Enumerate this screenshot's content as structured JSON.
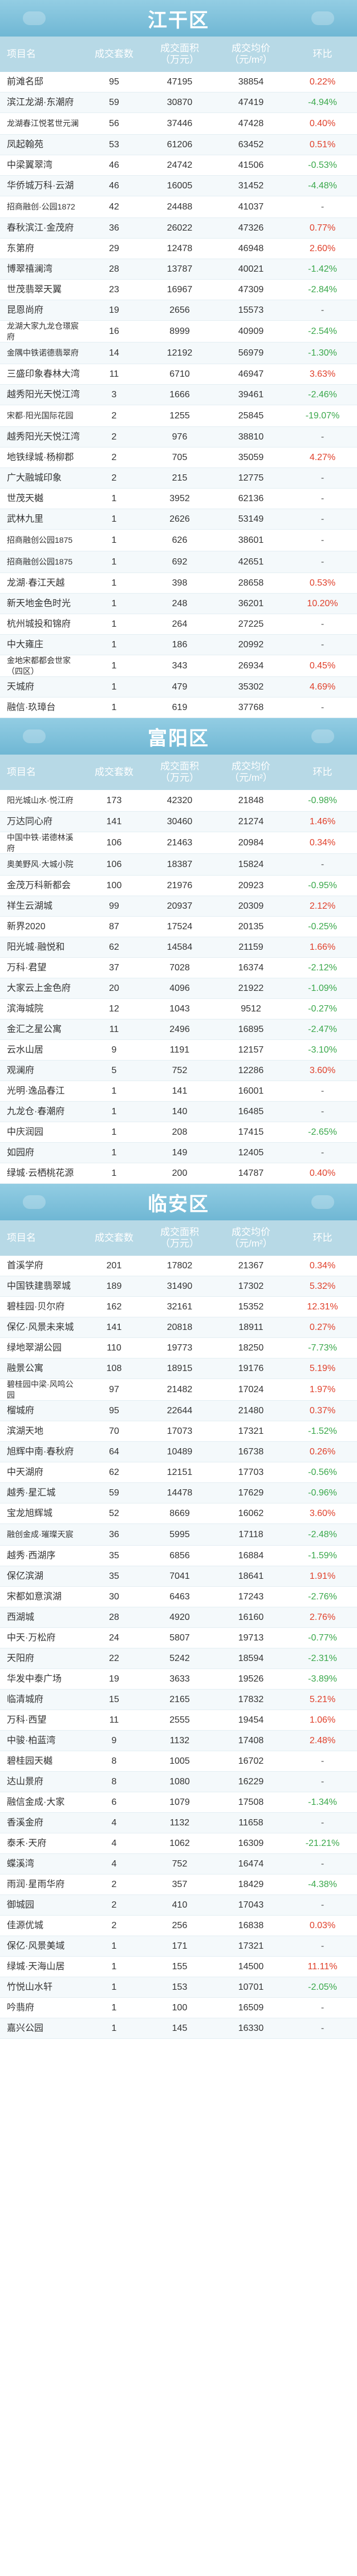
{
  "headers": {
    "name": "项目名",
    "count": "成交套数",
    "area": "成交面积\n（万元）",
    "price": "成交均价\n（元/m²）",
    "ratio": "环比"
  },
  "sections": [
    {
      "district": "江干区",
      "rows": [
        {
          "name": "前滩名邸",
          "count": "95",
          "area": "47195",
          "price": "38854",
          "ratio": "0.22%",
          "trend": "up"
        },
        {
          "name": "滨江龙湖·东潮府",
          "count": "59",
          "area": "30870",
          "price": "47419",
          "ratio": "-4.94%",
          "trend": "down"
        },
        {
          "name": "龙湖春江悦茗世元澜",
          "count": "56",
          "area": "37446",
          "price": "47428",
          "ratio": "0.40%",
          "trend": "up"
        },
        {
          "name": "凤起翰苑",
          "count": "53",
          "area": "61206",
          "price": "63452",
          "ratio": "0.51%",
          "trend": "up"
        },
        {
          "name": "中梁翼翠湾",
          "count": "46",
          "area": "24742",
          "price": "41506",
          "ratio": "-0.53%",
          "trend": "down"
        },
        {
          "name": "华侨城万科·云湖",
          "count": "46",
          "area": "16005",
          "price": "31452",
          "ratio": "-4.48%",
          "trend": "down"
        },
        {
          "name": "招商融创·公园1872",
          "count": "42",
          "area": "24488",
          "price": "41037",
          "ratio": "-",
          "trend": "flat"
        },
        {
          "name": "春秋滨江·金茂府",
          "count": "36",
          "area": "26022",
          "price": "47326",
          "ratio": "0.77%",
          "trend": "up"
        },
        {
          "name": "东第府",
          "count": "29",
          "area": "12478",
          "price": "46948",
          "ratio": "2.60%",
          "trend": "up"
        },
        {
          "name": "博翠禧澜湾",
          "count": "28",
          "area": "13787",
          "price": "40021",
          "ratio": "-1.42%",
          "trend": "down"
        },
        {
          "name": "世茂翡翠天翼",
          "count": "23",
          "area": "16967",
          "price": "47309",
          "ratio": "-2.84%",
          "trend": "down"
        },
        {
          "name": "昆恩尚府",
          "count": "19",
          "area": "2656",
          "price": "15573",
          "ratio": "-",
          "trend": "flat"
        },
        {
          "name": "龙湖大家九龙仓璟宸府",
          "count": "16",
          "area": "8999",
          "price": "40909",
          "ratio": "-2.54%",
          "trend": "down"
        },
        {
          "name": "金隅中铁诺德翡翠府",
          "count": "14",
          "area": "12192",
          "price": "56979",
          "ratio": "-1.30%",
          "trend": "down"
        },
        {
          "name": "三盛印象春林大湾",
          "count": "11",
          "area": "6710",
          "price": "46947",
          "ratio": "3.63%",
          "trend": "up"
        },
        {
          "name": "越秀阳光天悦江湾",
          "count": "3",
          "area": "1666",
          "price": "39461",
          "ratio": "-2.46%",
          "trend": "down"
        },
        {
          "name": "宋都·阳光国际花园",
          "count": "2",
          "area": "1255",
          "price": "25845",
          "ratio": "-19.07%",
          "trend": "down"
        },
        {
          "name": "越秀阳光天悦江湾",
          "count": "2",
          "area": "976",
          "price": "38810",
          "ratio": "-",
          "trend": "flat"
        },
        {
          "name": "地铁绿城·杨柳郡",
          "count": "2",
          "area": "705",
          "price": "35059",
          "ratio": "4.27%",
          "trend": "up"
        },
        {
          "name": "广大融城印象",
          "count": "2",
          "area": "215",
          "price": "12775",
          "ratio": "-",
          "trend": "flat"
        },
        {
          "name": "世茂天樾",
          "count": "1",
          "area": "3952",
          "price": "62136",
          "ratio": "-",
          "trend": "flat"
        },
        {
          "name": "武林九里",
          "count": "1",
          "area": "2626",
          "price": "53149",
          "ratio": "-",
          "trend": "flat"
        },
        {
          "name": "招商融创公园1875",
          "count": "1",
          "area": "626",
          "price": "38601",
          "ratio": "-",
          "trend": "flat"
        },
        {
          "name": "招商融创公园1875",
          "count": "1",
          "area": "692",
          "price": "42651",
          "ratio": "-",
          "trend": "flat"
        },
        {
          "name": "龙湖·春江天越",
          "count": "1",
          "area": "398",
          "price": "28658",
          "ratio": "0.53%",
          "trend": "up"
        },
        {
          "name": "新天地金色时光",
          "count": "1",
          "area": "248",
          "price": "36201",
          "ratio": "10.20%",
          "trend": "up"
        },
        {
          "name": "杭州城投和锦府",
          "count": "1",
          "area": "264",
          "price": "27225",
          "ratio": "-",
          "trend": "flat"
        },
        {
          "name": "中大雍庄",
          "count": "1",
          "area": "186",
          "price": "20992",
          "ratio": "-",
          "trend": "flat"
        },
        {
          "name": "金地宋都都会世家（四区）",
          "count": "1",
          "area": "343",
          "price": "26934",
          "ratio": "0.45%",
          "trend": "up"
        },
        {
          "name": "天城府",
          "count": "1",
          "area": "479",
          "price": "35302",
          "ratio": "4.69%",
          "trend": "up"
        },
        {
          "name": "融信·玖璋台",
          "count": "1",
          "area": "619",
          "price": "37768",
          "ratio": "-",
          "trend": "flat"
        }
      ]
    },
    {
      "district": "富阳区",
      "rows": [
        {
          "name": "阳光城山水·悦江府",
          "count": "173",
          "area": "42320",
          "price": "21848",
          "ratio": "-0.98%",
          "trend": "down"
        },
        {
          "name": "万达同心府",
          "count": "141",
          "area": "30460",
          "price": "21274",
          "ratio": "1.46%",
          "trend": "up"
        },
        {
          "name": "中国中铁·诺德林溪府",
          "count": "106",
          "area": "21463",
          "price": "20984",
          "ratio": "0.34%",
          "trend": "up"
        },
        {
          "name": "奥美野风·大城小院",
          "count": "106",
          "area": "18387",
          "price": "15824",
          "ratio": "-",
          "trend": "flat"
        },
        {
          "name": "金茂万科新都会",
          "count": "100",
          "area": "21976",
          "price": "20923",
          "ratio": "-0.95%",
          "trend": "down"
        },
        {
          "name": "祥生云湖城",
          "count": "99",
          "area": "20937",
          "price": "20309",
          "ratio": "2.12%",
          "trend": "up"
        },
        {
          "name": "新界2020",
          "count": "87",
          "area": "17524",
          "price": "20135",
          "ratio": "-0.25%",
          "trend": "down"
        },
        {
          "name": "阳光城·融悦和",
          "count": "62",
          "area": "14584",
          "price": "21159",
          "ratio": "1.66%",
          "trend": "up"
        },
        {
          "name": "万科·君望",
          "count": "37",
          "area": "7028",
          "price": "16374",
          "ratio": "-2.12%",
          "trend": "down"
        },
        {
          "name": "大家云上金色府",
          "count": "20",
          "area": "4096",
          "price": "21922",
          "ratio": "-1.09%",
          "trend": "down"
        },
        {
          "name": "滨海城院",
          "count": "12",
          "area": "1043",
          "price": "9512",
          "ratio": "-0.27%",
          "trend": "down"
        },
        {
          "name": "金汇之星公寓",
          "count": "11",
          "area": "2496",
          "price": "16895",
          "ratio": "-2.47%",
          "trend": "down"
        },
        {
          "name": "云水山居",
          "count": "9",
          "area": "1191",
          "price": "12157",
          "ratio": "-3.10%",
          "trend": "down"
        },
        {
          "name": "观澜府",
          "count": "5",
          "area": "752",
          "price": "12286",
          "ratio": "3.60%",
          "trend": "up"
        },
        {
          "name": "光明·逸品春江",
          "count": "1",
          "area": "141",
          "price": "16001",
          "ratio": "-",
          "trend": "flat"
        },
        {
          "name": "九龙仓·春潮府",
          "count": "1",
          "area": "140",
          "price": "16485",
          "ratio": "-",
          "trend": "flat"
        },
        {
          "name": "中庆润园",
          "count": "1",
          "area": "208",
          "price": "17415",
          "ratio": "-2.65%",
          "trend": "down"
        },
        {
          "name": "如园府",
          "count": "1",
          "area": "149",
          "price": "12405",
          "ratio": "-",
          "trend": "flat"
        },
        {
          "name": "绿城·云栖桃花源",
          "count": "1",
          "area": "200",
          "price": "14787",
          "ratio": "0.40%",
          "trend": "up"
        }
      ]
    },
    {
      "district": "临安区",
      "rows": [
        {
          "name": "首溪学府",
          "count": "201",
          "area": "17802",
          "price": "21367",
          "ratio": "0.34%",
          "trend": "up"
        },
        {
          "name": "中国铁建翡翠城",
          "count": "189",
          "area": "31490",
          "price": "17302",
          "ratio": "5.32%",
          "trend": "up"
        },
        {
          "name": "碧桂园·贝尔府",
          "count": "162",
          "area": "32161",
          "price": "15352",
          "ratio": "12.31%",
          "trend": "up"
        },
        {
          "name": "保亿·风景未来城",
          "count": "141",
          "area": "20818",
          "price": "18911",
          "ratio": "0.27%",
          "trend": "up"
        },
        {
          "name": "绿地翠湖公园",
          "count": "110",
          "area": "19773",
          "price": "18250",
          "ratio": "-7.73%",
          "trend": "down"
        },
        {
          "name": "融景公寓",
          "count": "108",
          "area": "18915",
          "price": "19176",
          "ratio": "5.19%",
          "trend": "up"
        },
        {
          "name": "碧桂园中梁·风鸣公园",
          "count": "97",
          "area": "21482",
          "price": "17024",
          "ratio": "1.97%",
          "trend": "up"
        },
        {
          "name": "榴城府",
          "count": "95",
          "area": "22644",
          "price": "21480",
          "ratio": "0.37%",
          "trend": "up"
        },
        {
          "name": "滨湖天地",
          "count": "70",
          "area": "17073",
          "price": "17321",
          "ratio": "-1.52%",
          "trend": "down"
        },
        {
          "name": "旭辉中南·春秋府",
          "count": "64",
          "area": "10489",
          "price": "16738",
          "ratio": "0.26%",
          "trend": "up"
        },
        {
          "name": "中天湖府",
          "count": "62",
          "area": "12151",
          "price": "17703",
          "ratio": "-0.56%",
          "trend": "down"
        },
        {
          "name": "越秀·星汇城",
          "count": "59",
          "area": "14478",
          "price": "17629",
          "ratio": "-0.96%",
          "trend": "down"
        },
        {
          "name": "宝龙旭辉城",
          "count": "52",
          "area": "8669",
          "price": "16062",
          "ratio": "3.60%",
          "trend": "up"
        },
        {
          "name": "融创金成·璀璨天宸",
          "count": "36",
          "area": "5995",
          "price": "17118",
          "ratio": "-2.48%",
          "trend": "down"
        },
        {
          "name": "越秀·西湖序",
          "count": "35",
          "area": "6856",
          "price": "16884",
          "ratio": "-1.59%",
          "trend": "down"
        },
        {
          "name": "保亿滨湖",
          "count": "35",
          "area": "7041",
          "price": "18641",
          "ratio": "1.91%",
          "trend": "up"
        },
        {
          "name": "宋都如意滨湖",
          "count": "30",
          "area": "6463",
          "price": "17243",
          "ratio": "-2.76%",
          "trend": "down"
        },
        {
          "name": "西湖城",
          "count": "28",
          "area": "4920",
          "price": "16160",
          "ratio": "2.76%",
          "trend": "up"
        },
        {
          "name": "中天·万松府",
          "count": "24",
          "area": "5807",
          "price": "19713",
          "ratio": "-0.77%",
          "trend": "down"
        },
        {
          "name": "天阳府",
          "count": "22",
          "area": "5242",
          "price": "18594",
          "ratio": "-2.31%",
          "trend": "down"
        },
        {
          "name": "华发中泰广场",
          "count": "19",
          "area": "3633",
          "price": "19526",
          "ratio": "-3.89%",
          "trend": "down"
        },
        {
          "name": "临清城府",
          "count": "15",
          "area": "2165",
          "price": "17832",
          "ratio": "5.21%",
          "trend": "up"
        },
        {
          "name": "万科·西望",
          "count": "11",
          "area": "2555",
          "price": "19454",
          "ratio": "1.06%",
          "trend": "up"
        },
        {
          "name": "中骏·柏蓝湾",
          "count": "9",
          "area": "1132",
          "price": "17408",
          "ratio": "2.48%",
          "trend": "up"
        },
        {
          "name": "碧桂园天樾",
          "count": "8",
          "area": "1005",
          "price": "16702",
          "ratio": "-",
          "trend": "flat"
        },
        {
          "name": "达山景府",
          "count": "8",
          "area": "1080",
          "price": "16229",
          "ratio": "-",
          "trend": "flat"
        },
        {
          "name": "融信金成·大家",
          "count": "6",
          "area": "1079",
          "price": "17508",
          "ratio": "-1.34%",
          "trend": "down"
        },
        {
          "name": "香溪金府",
          "count": "4",
          "area": "1132",
          "price": "11658",
          "ratio": "-",
          "trend": "flat"
        },
        {
          "name": "泰禾·天府",
          "count": "4",
          "area": "1062",
          "price": "16309",
          "ratio": "-21.21%",
          "trend": "down"
        },
        {
          "name": "蝶溪湾",
          "count": "4",
          "area": "752",
          "price": "16474",
          "ratio": "-",
          "trend": "flat"
        },
        {
          "name": "雨润·星雨华府",
          "count": "2",
          "area": "357",
          "price": "18429",
          "ratio": "-4.38%",
          "trend": "down"
        },
        {
          "name": "御城园",
          "count": "2",
          "area": "410",
          "price": "17043",
          "ratio": "-",
          "trend": "flat"
        },
        {
          "name": "佳源优城",
          "count": "2",
          "area": "256",
          "price": "16838",
          "ratio": "0.03%",
          "trend": "up"
        },
        {
          "name": "保亿·风景美域",
          "count": "1",
          "area": "171",
          "price": "17321",
          "ratio": "-",
          "trend": "flat"
        },
        {
          "name": "绿城·天海山居",
          "count": "1",
          "area": "155",
          "price": "14500",
          "ratio": "11.11%",
          "trend": "up"
        },
        {
          "name": "竹悦山水轩",
          "count": "1",
          "area": "153",
          "price": "10701",
          "ratio": "-2.05%",
          "trend": "down"
        },
        {
          "name": "吟翡府",
          "count": "1",
          "area": "100",
          "price": "16509",
          "ratio": "-",
          "trend": "flat"
        },
        {
          "name": "嘉兴公园",
          "count": "1",
          "area": "145",
          "price": "16330",
          "ratio": "-",
          "trend": "flat"
        }
      ]
    }
  ],
  "colors": {
    "banner": "#7fc2dc",
    "header": "#b7d9e6",
    "up": "#e0402b",
    "down": "#3aa84b"
  }
}
